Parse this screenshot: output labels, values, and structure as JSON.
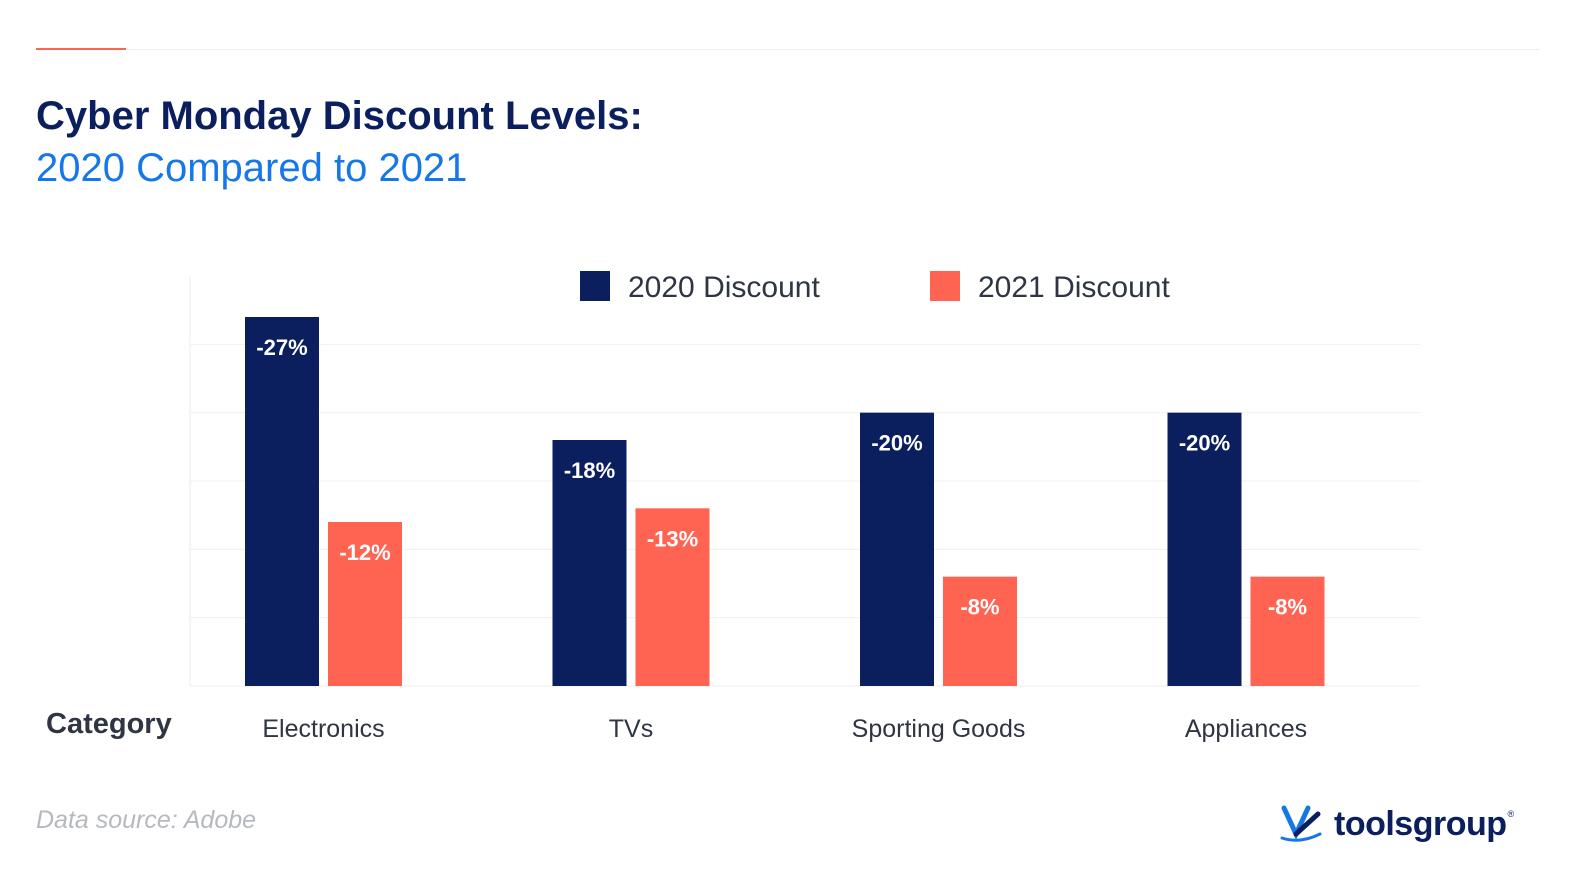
{
  "header": {
    "title": "Cyber Monday Discount Levels:",
    "subtitle": "2020 Compared to 2021"
  },
  "colors": {
    "accent": "#ff6352",
    "series_2020": "#0b1f5e",
    "series_2021": "#ff6352",
    "title": "#0b1f5e",
    "subtitle": "#1577e8"
  },
  "chart_data": {
    "type": "bar",
    "categories": [
      "Electronics",
      "TVs",
      "Sporting Goods",
      "Appliances"
    ],
    "series": [
      {
        "name": "2020 Discount",
        "values": [
          -27,
          -18,
          -20,
          -20
        ],
        "labels": [
          "-27%",
          "-18%",
          "-20%",
          "-20%"
        ],
        "color": "#0b1f5e"
      },
      {
        "name": "2021 Discount",
        "values": [
          -12,
          -13,
          -8,
          -8
        ],
        "labels": [
          "-12%",
          "-13%",
          "-8%",
          "-8%"
        ],
        "color": "#ff6352"
      }
    ],
    "xlabel": "Category",
    "ylabel": "",
    "ylim": [
      0,
      30
    ],
    "grid": true,
    "legend_position": "top-center"
  },
  "footer": {
    "source": "Data source: Adobe",
    "logo_text": "toolsgroup",
    "logo_mark": "®"
  }
}
